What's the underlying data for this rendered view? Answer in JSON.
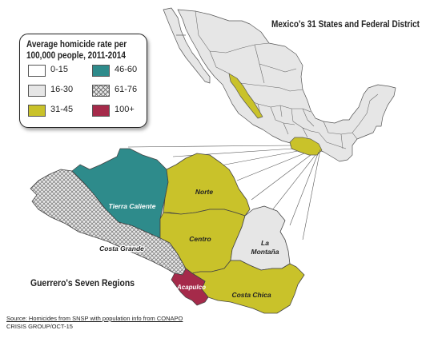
{
  "titles": {
    "mexico": "Mexico's 31 States and Federal District",
    "guerrero": "Guerrero's Seven Regions"
  },
  "legend": {
    "title_line1": "Average homicide rate per",
    "title_line2": "100,000 people, 2011-2014",
    "items": [
      {
        "label": "0-15",
        "color": "#ffffff"
      },
      {
        "label": "46-60",
        "color": "#2e8b8b"
      },
      {
        "label": "16-30",
        "color": "#e6e6e6"
      },
      {
        "label": "61-76",
        "color": "hatch"
      },
      {
        "label": "31-45",
        "color": "#c9c22a"
      },
      {
        "label": "100+",
        "color": "#a52a4a"
      }
    ]
  },
  "regions": {
    "tierra_caliente": {
      "label": "Tierra Caliente",
      "rate_class": "46-60"
    },
    "norte": {
      "label": "Norte",
      "rate_class": "31-45"
    },
    "centro": {
      "label": "Centro",
      "rate_class": "31-45"
    },
    "montana": {
      "label_line1": "La",
      "label_line2": "Montaña",
      "rate_class": "16-30"
    },
    "costa_grande": {
      "label": "Costa Grande",
      "rate_class": "61-76"
    },
    "acapulco": {
      "label": "Acapulco",
      "rate_class": "100+"
    },
    "costa_chica": {
      "label": "Costa Chica",
      "rate_class": "31-45"
    }
  },
  "source": {
    "line1": "Source: Homicides from SNSP with population info from CONAPO",
    "line2": "CRISIS GROUP/OCT-15"
  }
}
